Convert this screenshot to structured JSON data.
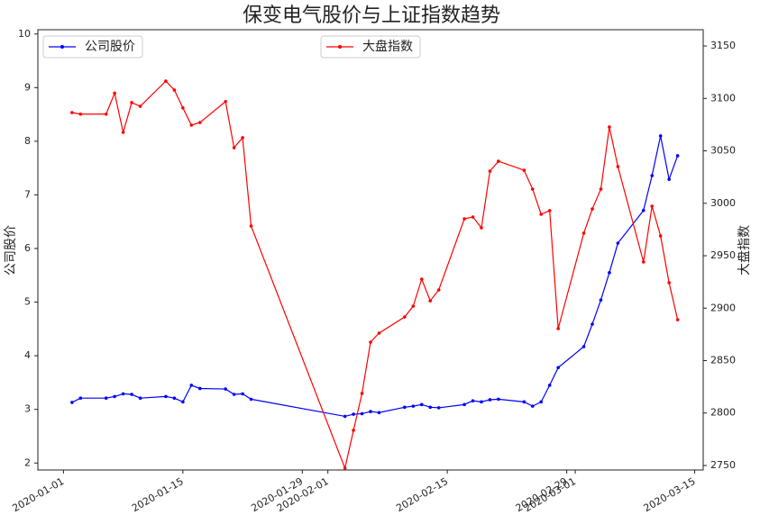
{
  "chart_data": {
    "type": "line",
    "title": "保变电气股价与上证指数趋势",
    "y_label": "公司股价",
    "y2_label": "大盘指数",
    "x": [
      "2020-01-02",
      "2020-01-03",
      "2020-01-06",
      "2020-01-07",
      "2020-01-08",
      "2020-01-09",
      "2020-01-10",
      "2020-01-13",
      "2020-01-14",
      "2020-01-15",
      "2020-01-16",
      "2020-01-17",
      "2020-01-20",
      "2020-01-21",
      "2020-01-22",
      "2020-01-23",
      "2020-02-03",
      "2020-02-04",
      "2020-02-05",
      "2020-02-06",
      "2020-02-07",
      "2020-02-10",
      "2020-02-11",
      "2020-02-12",
      "2020-02-13",
      "2020-02-14",
      "2020-02-17",
      "2020-02-18",
      "2020-02-19",
      "2020-02-20",
      "2020-02-21",
      "2020-02-24",
      "2020-02-25",
      "2020-02-26",
      "2020-02-27",
      "2020-02-28",
      "2020-03-02",
      "2020-03-03",
      "2020-03-04",
      "2020-03-05",
      "2020-03-06",
      "2020-03-09",
      "2020-03-10",
      "2020-03-11",
      "2020-03-12",
      "2020-03-13"
    ],
    "series": [
      {
        "name": "公司股价",
        "color": "#0000ff",
        "axis": "y",
        "legend": "upper left",
        "values": [
          3.13,
          3.21,
          3.21,
          3.24,
          3.29,
          3.28,
          3.21,
          3.24,
          3.21,
          3.14,
          3.45,
          3.39,
          3.38,
          3.28,
          3.29,
          3.19,
          2.87,
          2.91,
          2.92,
          2.96,
          2.94,
          3.04,
          3.06,
          3.09,
          3.04,
          3.03,
          3.09,
          3.16,
          3.14,
          3.18,
          3.19,
          3.14,
          3.06,
          3.14,
          3.45,
          3.78,
          4.17,
          4.59,
          5.04,
          5.55,
          6.1,
          6.71,
          7.36,
          8.1,
          7.29,
          7.73
        ]
      },
      {
        "name": "大盘指数",
        "color": "#ff0000",
        "axis": "y2",
        "legend": "upper center",
        "values": [
          3086.5,
          3085,
          3085,
          3105,
          3067.6,
          3096,
          3092.5,
          3116.5,
          3108,
          3091,
          3074.5,
          3077,
          3097,
          3053,
          3062.5,
          2978.3,
          2747.4,
          2783.5,
          2818.7,
          2867.6,
          2876.2,
          2891.6,
          2901.9,
          2927.7,
          2907,
          2917.4,
          2985.2,
          2986.9,
          2976.6,
          3030.7,
          3040.1,
          3031.5,
          3013.5,
          2989.5,
          2993,
          2880.5,
          2971.5,
          2994.6,
          3013.5,
          3072.7,
          3035,
          2944,
          2997.2,
          2968.9,
          2924.3,
          2889
        ]
      }
    ],
    "xlim": [
      "2019-12-29",
      "2020-03-16"
    ],
    "xticks": [
      "2020-01-01",
      "2020-01-15",
      "2020-01-29",
      "2020-02-01",
      "2020-02-15",
      "2020-02-29",
      "2020-03-01",
      "2020-03-15"
    ],
    "ylim": [
      1.87,
      10.08
    ],
    "yticks": [
      2,
      3,
      4,
      5,
      6,
      7,
      8,
      9,
      10
    ],
    "y2lim": [
      2745.7,
      3165.5
    ],
    "y2ticks": [
      2750,
      2800,
      2850,
      2900,
      2950,
      3000,
      3050,
      3100,
      3150
    ],
    "grid": false
  }
}
